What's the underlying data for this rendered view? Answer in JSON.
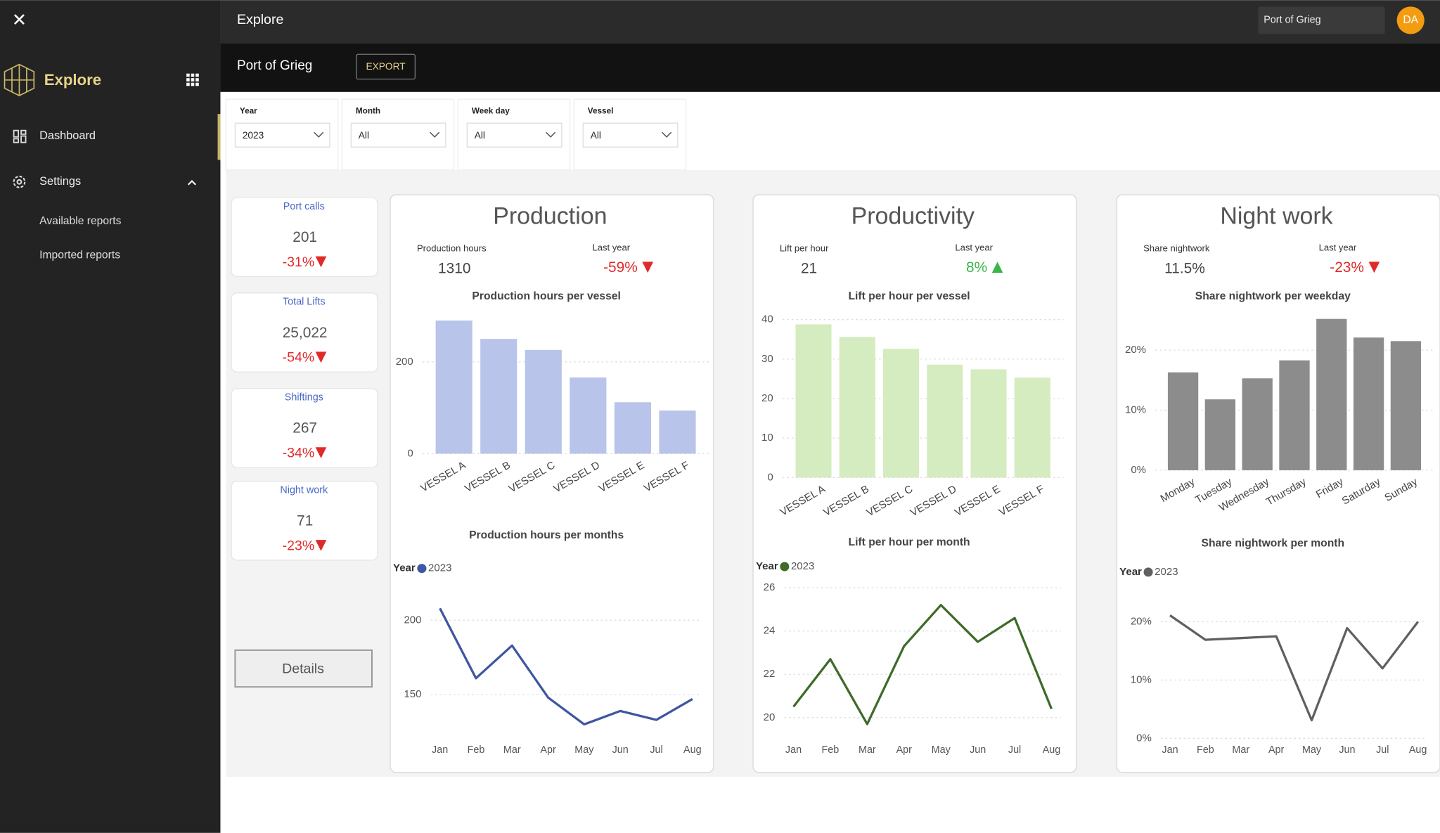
{
  "topbar": {
    "title": "Explore",
    "search": "Port of Grieg",
    "avatar": "DA"
  },
  "sidebar": {
    "brand": "Explore",
    "nav": [
      "Dashboard",
      "Settings"
    ],
    "subnav": [
      "Available reports",
      "Imported reports"
    ]
  },
  "header": {
    "title": "Port of Grieg",
    "export": "EXPORT"
  },
  "filters": [
    {
      "label": "Year",
      "value": "2023"
    },
    {
      "label": "Month",
      "value": "All"
    },
    {
      "label": "Week day",
      "value": "All"
    },
    {
      "label": "Vessel",
      "value": "All"
    }
  ],
  "kpis": [
    {
      "label": "Port calls",
      "value": "201",
      "change": "-31%"
    },
    {
      "label": "Total Lifts",
      "value": "25,022",
      "change": "-54%"
    },
    {
      "label": "Shiftings",
      "value": "267",
      "change": "-34%"
    },
    {
      "label": "Night work",
      "value": "71",
      "change": "-23%"
    }
  ],
  "details": "Details",
  "panels": [
    {
      "title": "Production",
      "metric_label": "Production hours",
      "metric_value": "1310",
      "last_year_label": "Last year",
      "last_year_value": "-59%",
      "trend": "down",
      "bar_chart": {
        "type": "bar",
        "title": "Production hours per vessel",
        "categories": [
          "VESSEL A",
          "VESSEL B",
          "VESSEL C",
          "VESSEL D",
          "VESSEL E",
          "VESSEL F"
        ],
        "values": [
          290,
          250,
          226,
          166,
          112,
          94
        ],
        "color": "#b8c4e9",
        "ylim": [
          0,
          300
        ],
        "yticks": [
          0,
          200
        ],
        "grid": true
      },
      "line_chart": {
        "type": "line",
        "title": "Production hours per months",
        "legend_title": "Year",
        "categories": [
          "Jan",
          "Feb",
          "Mar",
          "Apr",
          "May",
          "Jun",
          "Jul",
          "Aug"
        ],
        "series": [
          {
            "name": "2023",
            "color": "#3f56a0",
            "values": [
              208,
              161,
              183,
              148,
              130,
              139,
              133,
              147
            ]
          }
        ],
        "ylim": [
          120,
          220
        ],
        "yticks": [
          150,
          200
        ],
        "grid": true
      }
    },
    {
      "title": "Productivity",
      "metric_label": "Lift per hour",
      "metric_value": "21",
      "last_year_label": "Last year",
      "last_year_value": "8%",
      "trend": "up",
      "bar_chart": {
        "type": "bar",
        "title": "Lift per hour per vessel",
        "categories": [
          "VESSEL A",
          "VESSEL B",
          "VESSEL C",
          "VESSEL D",
          "VESSEL E",
          "VESSEL F"
        ],
        "values": [
          38.8,
          35.6,
          32.6,
          28.6,
          27.4,
          25.3
        ],
        "color": "#d4ecbf",
        "ylim": [
          0,
          40
        ],
        "yticks": [
          0,
          10,
          20,
          30,
          40
        ],
        "grid": true
      },
      "line_chart": {
        "type": "line",
        "title": "Lift per hour per month",
        "legend_title": "Year",
        "categories": [
          "Jan",
          "Feb",
          "Mar",
          "Apr",
          "May",
          "Jun",
          "Jul",
          "Aug"
        ],
        "series": [
          {
            "name": "2023",
            "color": "#3e6b2a",
            "values": [
              20.5,
              22.7,
              19.7,
              23.3,
              25.2,
              23.5,
              24.6,
              20.4
            ]
          }
        ],
        "ylim": [
          19,
          26
        ],
        "yticks": [
          20,
          22,
          24,
          26
        ],
        "grid": true
      }
    },
    {
      "title": "Night work",
      "metric_label": "Share nightwork",
      "metric_value": "11.5%",
      "last_year_label": "Last year",
      "last_year_value": "-23%",
      "trend": "down",
      "bar_chart": {
        "type": "bar",
        "title": "Share nightwork per weekday",
        "categories": [
          "Monday",
          "Tuesday",
          "Wednesday",
          "Thursday",
          "Friday",
          "Saturday",
          "Sunday"
        ],
        "values": [
          16.3,
          11.8,
          15.3,
          18.3,
          25.2,
          22.1,
          21.5
        ],
        "color": "#8c8c8c",
        "ylim": [
          0,
          26
        ],
        "yticks": [
          {
            "value": 0,
            "label": "0%"
          },
          {
            "value": 10,
            "label": "10%"
          },
          {
            "value": 20,
            "label": "20%"
          }
        ],
        "grid": true
      },
      "line_chart": {
        "type": "line",
        "title": "Share nightwork per month",
        "legend_title": "Year",
        "categories": [
          "Jan",
          "Feb",
          "Mar",
          "Apr",
          "May",
          "Jun",
          "Jul",
          "Aug"
        ],
        "series": [
          {
            "name": "2023",
            "color": "#606060",
            "values": [
              21.1,
              16.9,
              17.2,
              17.5,
              3.1,
              18.9,
              12.0,
              20.0
            ]
          }
        ],
        "ylim": [
          0,
          23
        ],
        "yticks": [
          {
            "value": 0,
            "label": "0%"
          },
          {
            "value": 10,
            "label": "10%"
          },
          {
            "value": 20,
            "label": "20%"
          }
        ],
        "grid": true
      }
    }
  ]
}
